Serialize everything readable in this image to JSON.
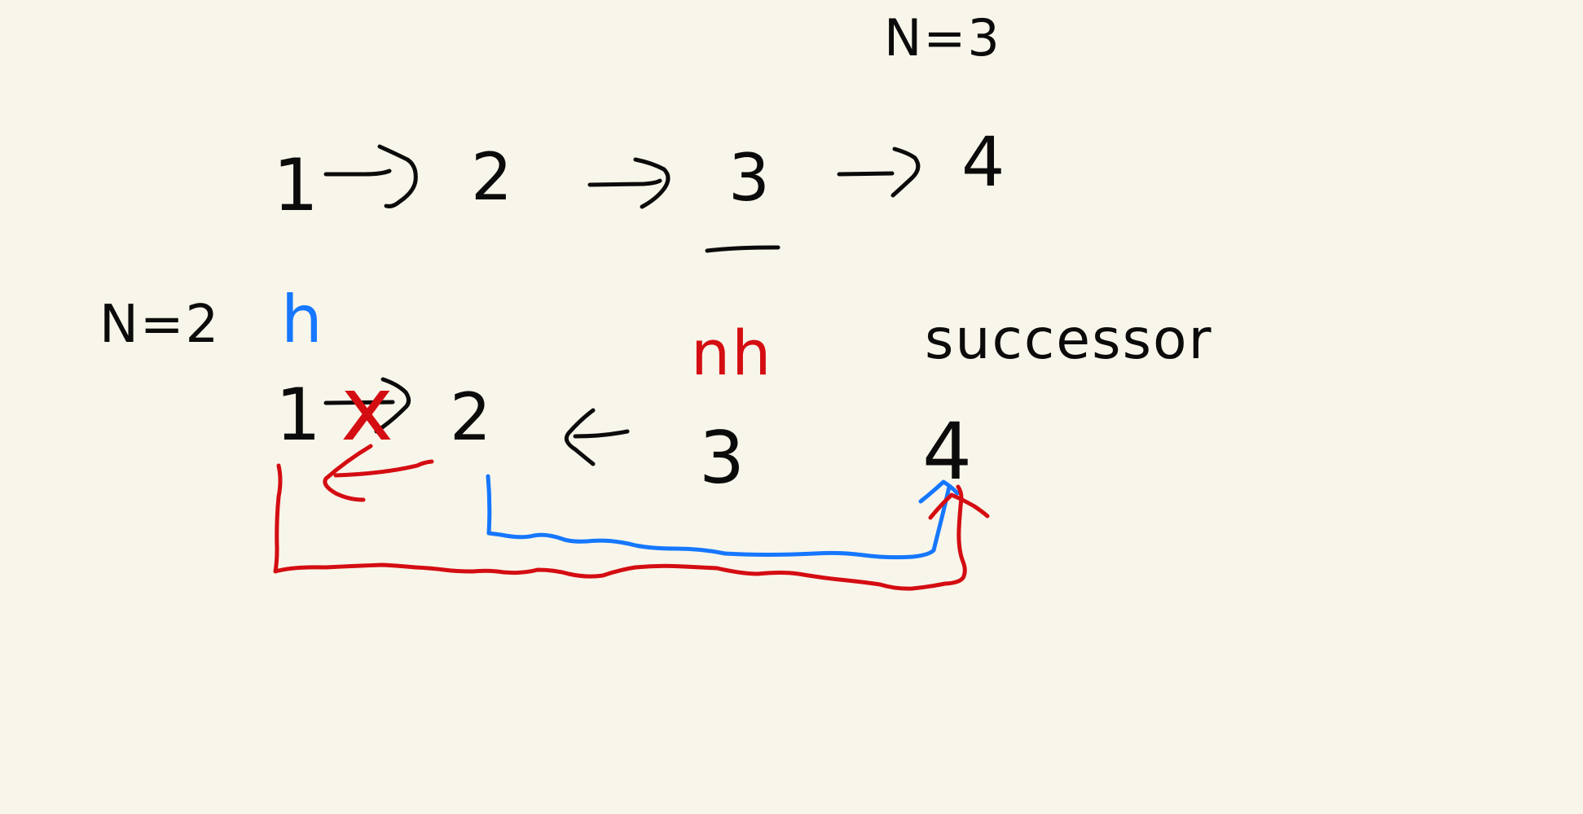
{
  "labels": {
    "n3": "N=3",
    "n2": "N=2",
    "successor": "successor",
    "head": "h",
    "new_head": "nh"
  },
  "top_list": {
    "nodes": [
      "1",
      "2",
      "3",
      "4"
    ]
  },
  "bottom_list": {
    "nodes": [
      "1",
      "2",
      "3",
      "4"
    ],
    "left_arrow_glyph": "<",
    "cross_glyph": "x"
  },
  "colors": {
    "background": "#f8f6ea",
    "ink": "#0b0b0b",
    "blue": "#1677ff",
    "red": "#d40d12"
  }
}
